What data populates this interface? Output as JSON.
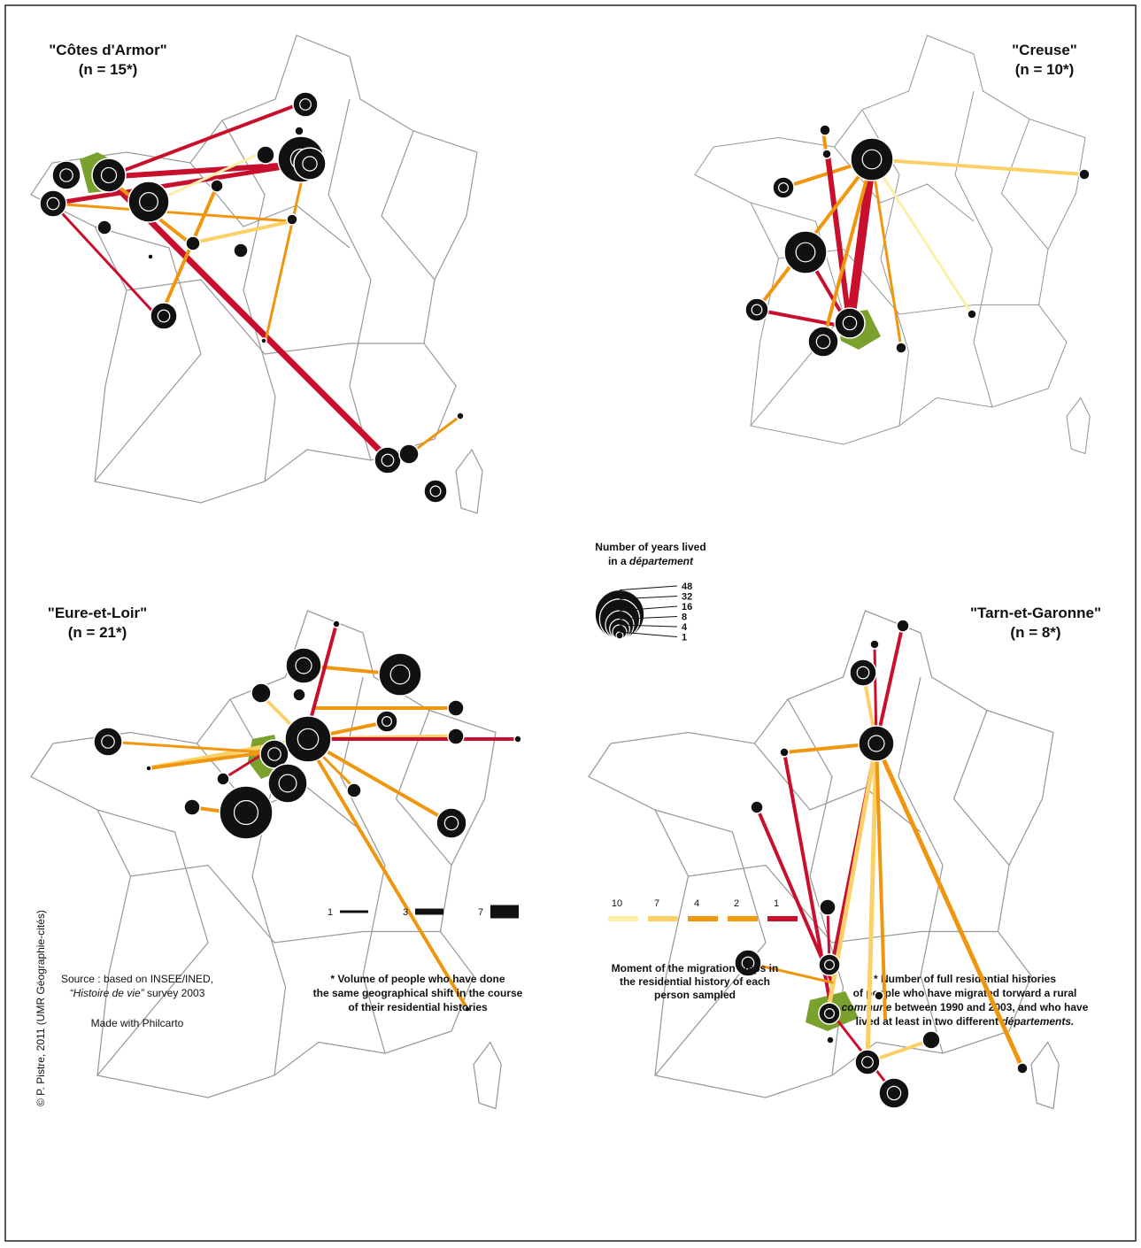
{
  "maps": [
    {
      "title": "\"Côtes d'Armor\"",
      "count": "(n = 15*)"
    },
    {
      "title": "\"Creuse\"",
      "count": "(n = 10*)"
    },
    {
      "title": "\"Eure-et-Loir\"",
      "count": "(n = 21*)"
    },
    {
      "title": "\"Tarn-et-Garonne\"",
      "count": "(n = 8*)"
    }
  ],
  "circle_legend": {
    "title_1": "Number of years lived",
    "title_2a": "in a",
    "title_2b": "département",
    "values": [
      48,
      32,
      16,
      8,
      4,
      1
    ]
  },
  "width_legend": {
    "lines": [
      "* Volume of people who have done",
      "the same geographical shift in the course",
      "of their residential histories"
    ],
    "values": [
      1,
      3,
      7
    ]
  },
  "color_legend": {
    "lines": [
      "Moment of the migration steps in",
      "the residential history of each",
      "person sampled"
    ],
    "values": [
      10,
      7,
      4,
      2,
      1
    ],
    "colors": [
      "#fcf0a8",
      "#fbd067",
      "#f0960e",
      "#f39c12",
      "#c8102e"
    ]
  },
  "source": {
    "line_1": "Source :  based on INSEE/INED,",
    "line_2a": "“Histoire de vie”",
    "line_2b": "survey 2003",
    "made_with": "Made with Philcarto"
  },
  "note": {
    "line_1": "* Number of full residential histories",
    "line_2": "of people who have migrated torward a rural",
    "line_3a": "commune",
    "line_3b": "between 1990 and 2003, and who have",
    "line_4a": "lived at least in two different",
    "line_4b": "départements."
  },
  "copyright": "©  P. Pistre, 2011 (UMR Géographie-cités)"
}
